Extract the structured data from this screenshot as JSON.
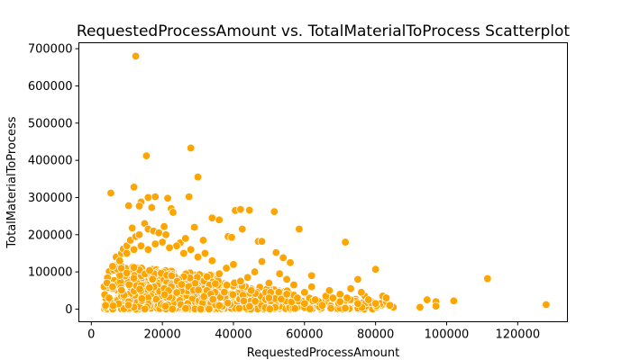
{
  "chart_data": {
    "type": "scatter",
    "title": "RequestedProcessAmount vs. TotalMaterialToProcess Scatterplot",
    "xlabel": "RequestedProcessAmount",
    "ylabel": "TotalMaterialToProcess",
    "xlim": [
      -3500,
      134000
    ],
    "ylim": [
      -34000,
      716000
    ],
    "xticks": [
      0,
      20000,
      40000,
      60000,
      80000,
      100000,
      120000
    ],
    "xtick_labels": [
      "0",
      "20000",
      "40000",
      "60000",
      "80000",
      "100000",
      "120000"
    ],
    "yticks": [
      0,
      100000,
      200000,
      300000,
      400000,
      500000,
      600000,
      700000
    ],
    "ytick_labels": [
      "0",
      "100000",
      "200000",
      "300000",
      "400000",
      "500000",
      "600000",
      "700000"
    ],
    "grid": false,
    "legend": "none",
    "color": "#FFA500",
    "series": [
      {
        "points": [
          [
            12500,
            680000
          ],
          [
            28000,
            433000
          ],
          [
            15500,
            412000
          ],
          [
            30000,
            355000
          ],
          [
            5500,
            312000
          ],
          [
            12000,
            328000
          ],
          [
            16000,
            300000
          ],
          [
            18000,
            302000
          ],
          [
            27500,
            302000
          ],
          [
            21500,
            298000
          ],
          [
            14000,
            288000
          ],
          [
            10500,
            278000
          ],
          [
            13500,
            277000
          ],
          [
            17000,
            273000
          ],
          [
            22500,
            270000
          ],
          [
            23000,
            260000
          ],
          [
            34000,
            245000
          ],
          [
            36000,
            240000
          ],
          [
            40500,
            265000
          ],
          [
            42000,
            268000
          ],
          [
            44500,
            266000
          ],
          [
            51500,
            262000
          ],
          [
            11500,
            218000
          ],
          [
            20500,
            222000
          ],
          [
            29000,
            220000
          ],
          [
            38500,
            195000
          ],
          [
            42500,
            215000
          ],
          [
            58500,
            215000
          ],
          [
            71500,
            180000
          ],
          [
            47000,
            182000
          ],
          [
            48000,
            182000
          ],
          [
            6000,
            115000
          ],
          [
            7000,
            140000
          ],
          [
            8500,
            150000
          ],
          [
            9000,
            162000
          ],
          [
            10000,
            170000
          ],
          [
            11000,
            185000
          ],
          [
            12500,
            195000
          ],
          [
            13500,
            200000
          ],
          [
            15000,
            230000
          ],
          [
            16000,
            215000
          ],
          [
            17500,
            210000
          ],
          [
            19000,
            205000
          ],
          [
            21000,
            200000
          ],
          [
            25000,
            178000
          ],
          [
            26500,
            190000
          ],
          [
            31500,
            185000
          ],
          [
            39500,
            193000
          ],
          [
            52000,
            152000
          ],
          [
            54000,
            138000
          ],
          [
            56000,
            125000
          ],
          [
            48000,
            128000
          ],
          [
            80000,
            107000
          ],
          [
            111500,
            82000
          ],
          [
            102000,
            22000
          ],
          [
            97000,
            20000
          ],
          [
            94500,
            25000
          ],
          [
            92500,
            5000
          ],
          [
            97000,
            8000
          ],
          [
            128000,
            12000
          ],
          [
            85000,
            5000
          ],
          [
            83000,
            20000
          ],
          [
            82000,
            35000
          ],
          [
            77000,
            35000
          ],
          [
            75000,
            80000
          ],
          [
            73000,
            55000
          ],
          [
            70000,
            40000
          ],
          [
            68000,
            30000
          ],
          [
            66000,
            35000
          ],
          [
            64000,
            20000
          ],
          [
            62000,
            90000
          ],
          [
            62000,
            60000
          ],
          [
            60000,
            45000
          ],
          [
            58000,
            30000
          ],
          [
            57000,
            65000
          ],
          [
            55000,
            80000
          ],
          [
            53000,
            95000
          ],
          [
            50000,
            70000
          ],
          [
            46000,
            100000
          ],
          [
            44000,
            85000
          ],
          [
            42000,
            75000
          ],
          [
            40000,
            120000
          ],
          [
            38000,
            110000
          ],
          [
            36000,
            95000
          ],
          [
            34000,
            130000
          ],
          [
            32000,
            150000
          ],
          [
            30000,
            140000
          ],
          [
            28000,
            160000
          ],
          [
            26000,
            150000
          ],
          [
            24000,
            170000
          ],
          [
            22000,
            165000
          ],
          [
            20000,
            180000
          ],
          [
            18000,
            175000
          ],
          [
            16000,
            160000
          ],
          [
            14000,
            170000
          ],
          [
            12000,
            160000
          ],
          [
            10000,
            150000
          ],
          [
            8000,
            130000
          ],
          [
            6000,
            60000
          ],
          [
            5000,
            30000
          ],
          [
            4000,
            10000
          ],
          [
            45000,
            50000
          ],
          [
            50000,
            30000
          ],
          [
            55000,
            40000
          ],
          [
            60000,
            15000
          ],
          [
            65000,
            10000
          ],
          [
            70000,
            20000
          ],
          [
            75000,
            15000
          ],
          [
            78000,
            25000
          ],
          [
            84000,
            10000
          ],
          [
            67000,
            50000
          ],
          [
            63000,
            25000
          ],
          [
            72000,
            30000
          ],
          [
            76000,
            45000
          ],
          [
            80000,
            15000
          ],
          [
            83000,
            30000
          ]
        ]
      }
    ]
  }
}
